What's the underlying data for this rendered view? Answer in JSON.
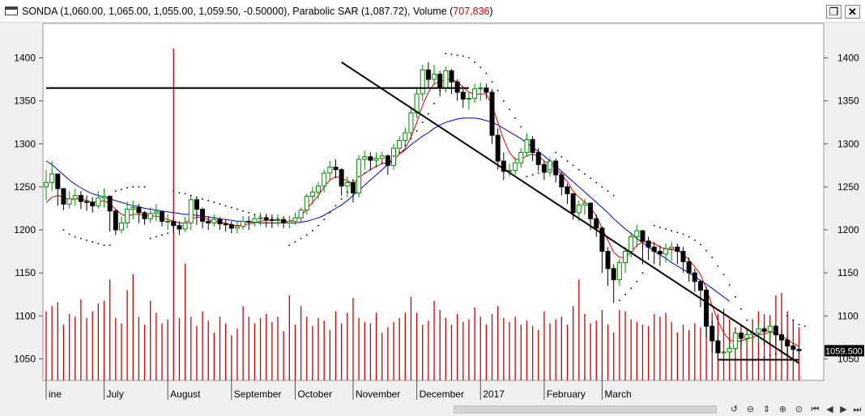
{
  "window": {
    "title_prefix": "SONDA (1,060.00, 1,065.00, 1,055.00, 1,059.50, -0.50000), Parabolic SAR (1,087.72), Volume (",
    "title_volume": "707,836",
    "title_suffix": ")",
    "restore_icon": "restore-window-icon",
    "close_icon": "close-window-icon"
  },
  "colors": {
    "up_candle": "#008800",
    "down_candle": "#000000",
    "sma_short": "#dd0000",
    "sma_long": "#0000cc",
    "volume": "#cc0000",
    "sar": "#000000",
    "price_tag": "#000000"
  },
  "chart_data": {
    "type": "candlestick",
    "symbol": "SONDA",
    "last_price_label": "1059.500",
    "y_axis": {
      "min": 1025,
      "max": 1440,
      "ticks": [
        1050,
        1100,
        1150,
        1200,
        1250,
        1300,
        1350,
        1400
      ],
      "labels": [
        "1050",
        "1100",
        "1150",
        "1200",
        "1250",
        "1300",
        "1350",
        "1400"
      ]
    },
    "x_axis": {
      "labels": [
        "ine",
        "July",
        "August",
        "September",
        "October",
        "November",
        "December",
        "2017",
        "February",
        "March"
      ],
      "label_index": [
        0,
        10,
        21,
        32,
        43,
        53,
        64,
        75,
        86,
        96
      ]
    },
    "close": [
      1255,
      1265,
      1248,
      1230,
      1236,
      1240,
      1233,
      1232,
      1228,
      1237,
      1239,
      1222,
      1200,
      1208,
      1224,
      1226,
      1220,
      1213,
      1219,
      1221,
      1210,
      1210,
      1205,
      1201,
      1208,
      1235,
      1224,
      1210,
      1208,
      1212,
      1207,
      1206,
      1202,
      1204,
      1210,
      1209,
      1213,
      1214,
      1212,
      1211,
      1212,
      1208,
      1210,
      1214,
      1223,
      1239,
      1244,
      1251,
      1266,
      1273,
      1270,
      1251,
      1255,
      1243,
      1282,
      1285,
      1281,
      1283,
      1286,
      1275,
      1295,
      1304,
      1313,
      1336,
      1358,
      1386,
      1375,
      1381,
      1365,
      1385,
      1372,
      1360,
      1352,
      1353,
      1364,
      1365,
      1360,
      1310,
      1280,
      1268,
      1269,
      1278,
      1290,
      1305,
      1290,
      1276,
      1267,
      1280,
      1264,
      1250,
      1242,
      1220,
      1229,
      1231,
      1213,
      1202,
      1175,
      1155,
      1142,
      1162,
      1175,
      1192,
      1199,
      1187,
      1180,
      1175,
      1172,
      1178,
      1180,
      1175,
      1163,
      1150,
      1140,
      1130,
      1088,
      1071,
      1057,
      1058,
      1062,
      1080,
      1074,
      1078,
      1080,
      1085,
      1082,
      1088,
      1078,
      1072,
      1065,
      1061,
      1059.5
    ],
    "high": [
      1270,
      1280,
      1265,
      1248,
      1245,
      1248,
      1245,
      1240,
      1238,
      1245,
      1248,
      1240,
      1224,
      1215,
      1233,
      1234,
      1230,
      1222,
      1226,
      1230,
      1222,
      1218,
      1214,
      1210,
      1215,
      1240,
      1238,
      1226,
      1216,
      1218,
      1215,
      1212,
      1210,
      1210,
      1216,
      1216,
      1218,
      1220,
      1219,
      1218,
      1218,
      1216,
      1216,
      1220,
      1226,
      1242,
      1250,
      1256,
      1270,
      1280,
      1282,
      1272,
      1262,
      1258,
      1287,
      1292,
      1290,
      1290,
      1291,
      1288,
      1300,
      1309,
      1319,
      1341,
      1365,
      1392,
      1395,
      1392,
      1385,
      1390,
      1387,
      1375,
      1364,
      1360,
      1370,
      1371,
      1370,
      1364,
      1318,
      1290,
      1277,
      1284,
      1295,
      1312,
      1309,
      1295,
      1280,
      1284,
      1283,
      1268,
      1254,
      1243,
      1234,
      1236,
      1232,
      1218,
      1204,
      1180,
      1160,
      1166,
      1180,
      1197,
      1206,
      1200,
      1192,
      1186,
      1182,
      1184,
      1186,
      1184,
      1180,
      1168,
      1155,
      1142,
      1134,
      1095,
      1078,
      1066,
      1068,
      1083,
      1082,
      1085,
      1086,
      1090,
      1088,
      1092,
      1090,
      1084,
      1076,
      1068,
      1065
    ],
    "low": [
      1235,
      1245,
      1228,
      1223,
      1225,
      1228,
      1224,
      1222,
      1220,
      1225,
      1226,
      1198,
      1194,
      1196,
      1202,
      1212,
      1208,
      1206,
      1208,
      1210,
      1204,
      1200,
      1196,
      1194,
      1198,
      1200,
      1206,
      1202,
      1200,
      1204,
      1200,
      1198,
      1196,
      1196,
      1200,
      1200,
      1204,
      1205,
      1203,
      1202,
      1204,
      1202,
      1202,
      1206,
      1208,
      1218,
      1230,
      1236,
      1244,
      1258,
      1260,
      1240,
      1238,
      1232,
      1238,
      1270,
      1270,
      1272,
      1276,
      1264,
      1270,
      1290,
      1298,
      1306,
      1330,
      1350,
      1366,
      1368,
      1355,
      1360,
      1358,
      1350,
      1342,
      1340,
      1348,
      1350,
      1352,
      1300,
      1270,
      1258,
      1262,
      1264,
      1272,
      1285,
      1280,
      1268,
      1258,
      1262,
      1255,
      1240,
      1230,
      1212,
      1210,
      1218,
      1200,
      1192,
      1150,
      1135,
      1115,
      1135,
      1150,
      1168,
      1180,
      1160,
      1165,
      1160,
      1158,
      1162,
      1164,
      1160,
      1150,
      1140,
      1128,
      1110,
      1075,
      1058,
      1050,
      1048,
      1050,
      1055,
      1060,
      1064,
      1068,
      1070,
      1066,
      1070,
      1066,
      1060,
      1052,
      1050,
      1055
    ],
    "sma_short": [
      1232,
      1238,
      1240,
      1238,
      1235,
      1236,
      1236,
      1234,
      1232,
      1233,
      1234,
      1230,
      1224,
      1218,
      1216,
      1218,
      1218,
      1217,
      1216,
      1216,
      1214,
      1212,
      1210,
      1208,
      1208,
      1212,
      1215,
      1214,
      1212,
      1210,
      1209,
      1208,
      1206,
      1205,
      1206,
      1207,
      1208,
      1210,
      1211,
      1211,
      1211,
      1210,
      1210,
      1212,
      1216,
      1224,
      1232,
      1240,
      1250,
      1258,
      1262,
      1260,
      1257,
      1254,
      1260,
      1266,
      1270,
      1274,
      1277,
      1278,
      1282,
      1288,
      1295,
      1308,
      1325,
      1345,
      1360,
      1370,
      1372,
      1375,
      1375,
      1372,
      1366,
      1360,
      1358,
      1358,
      1358,
      1345,
      1325,
      1305,
      1290,
      1282,
      1282,
      1286,
      1288,
      1286,
      1280,
      1276,
      1272,
      1264,
      1256,
      1245,
      1238,
      1232,
      1226,
      1216,
      1202,
      1188,
      1174,
      1168,
      1168,
      1174,
      1182,
      1186,
      1186,
      1184,
      1180,
      1178,
      1177,
      1176,
      1172,
      1165,
      1157,
      1148,
      1132,
      1112,
      1094,
      1080,
      1072,
      1070,
      1071,
      1073,
      1075,
      1078,
      1079,
      1081,
      1080,
      1077,
      1072,
      1068,
      1065
    ],
    "sma_long": [
      1280,
      1276,
      1270,
      1264,
      1258,
      1253,
      1249,
      1245,
      1242,
      1240,
      1238,
      1236,
      1234,
      1232,
      1230,
      1228,
      1227,
      1225,
      1224,
      1223,
      1222,
      1221,
      1220,
      1219,
      1218,
      1218,
      1217,
      1216,
      1215,
      1214,
      1213,
      1212,
      1211,
      1210,
      1210,
      1209,
      1209,
      1208,
      1208,
      1208,
      1208,
      1208,
      1208,
      1208,
      1209,
      1210,
      1212,
      1214,
      1217,
      1221,
      1225,
      1229,
      1234,
      1240,
      1246,
      1252,
      1258,
      1264,
      1270,
      1276,
      1282,
      1288,
      1293,
      1299,
      1304,
      1309,
      1313,
      1318,
      1322,
      1325,
      1327,
      1329,
      1330,
      1330,
      1330,
      1329,
      1327,
      1325,
      1322,
      1318,
      1314,
      1310,
      1306,
      1301,
      1296,
      1291,
      1286,
      1280,
      1274,
      1268,
      1262,
      1256,
      1250,
      1244,
      1238,
      1232,
      1226,
      1220,
      1213,
      1207,
      1201,
      1196,
      1190,
      1185,
      1180,
      1175,
      1171,
      1167,
      1162,
      1158,
      1154,
      1150,
      1146,
      1141,
      1137,
      1132,
      1127,
      1122,
      1117
    ],
    "sar": [
      null,
      null,
      null,
      1200,
      1195,
      1192,
      1190,
      1188,
      1186,
      1184,
      1182,
      1182,
      1245,
      1247,
      1249,
      1250,
      1250,
      1250,
      1190,
      1192,
      1194,
      1196,
      1245,
      1243,
      1242,
      1240,
      1238,
      1236,
      1234,
      1232,
      1230,
      1228,
      1226,
      1224,
      1222,
      1220,
      1218,
      1216,
      1215,
      1214,
      1213,
      1212,
      1182,
      1186,
      1190,
      1194,
      1199,
      1205,
      1212,
      1220,
      1228,
      1236,
      1244,
      1258,
      1262,
      1266,
      1270,
      1274,
      1278,
      1282,
      1286,
      1290,
      1298,
      1306,
      1315,
      1325,
      1335,
      1347,
      1362,
      1405,
      1404,
      1403,
      1402,
      1400,
      1395,
      1389,
      1382,
      1372,
      1362,
      1350,
      1340,
      1330,
      1320,
      1262,
      1264,
      1266,
      1268,
      1270,
      1290,
      1285,
      1280,
      1275,
      1270,
      1265,
      1260,
      1255,
      1250,
      1245,
      1240,
      1118,
      1125,
      1132,
      1140,
      1150,
      1160,
      1205,
      1203,
      1201,
      1199,
      1197,
      1195,
      1192,
      1188,
      1183,
      1176,
      1168,
      1158,
      1148,
      1136,
      1122,
      1108,
      1095,
      1048,
      1050,
      1052,
      1054,
      1056,
      1058,
      1100,
      1095,
      1090,
      1088
    ],
    "volume_scale_max": 1000,
    "volume": [
      520,
      560,
      590,
      420,
      500,
      480,
      610,
      470,
      520,
      580,
      600,
      760,
      470,
      430,
      680,
      800,
      480,
      420,
      600,
      510,
      430,
      460,
      1000,
      470,
      880,
      480,
      410,
      520,
      450,
      360,
      480,
      430,
      340,
      390,
      560,
      480,
      430,
      470,
      500,
      440,
      480,
      370,
      640,
      420,
      560,
      480,
      410,
      470,
      450,
      380,
      520,
      430,
      510,
      620,
      470,
      440,
      430,
      510,
      360,
      400,
      440,
      470,
      510,
      630,
      510,
      420,
      450,
      600,
      530,
      470,
      420,
      500,
      440,
      460,
      550,
      480,
      420,
      500,
      560,
      470,
      440,
      480,
      420,
      450,
      410,
      380,
      520,
      430,
      460,
      480,
      420,
      560,
      760,
      500,
      430,
      450,
      530,
      420,
      360,
      530,
      520,
      460,
      440,
      420,
      410,
      500,
      480,
      510,
      440,
      360,
      420,
      380,
      430,
      400,
      460,
      510,
      500,
      540,
      460,
      400,
      420,
      380,
      460,
      520,
      500,
      490,
      640,
      660,
      520,
      460,
      400
    ],
    "horizontal_lines": [
      {
        "value": 1365,
        "from": 0,
        "to": 73
      },
      {
        "value": 1049,
        "from": 116,
        "to": 130
      }
    ],
    "trend_line": {
      "from_index": 51,
      "from_value": 1395,
      "to_index": 130,
      "to_value": 1045
    }
  }
}
